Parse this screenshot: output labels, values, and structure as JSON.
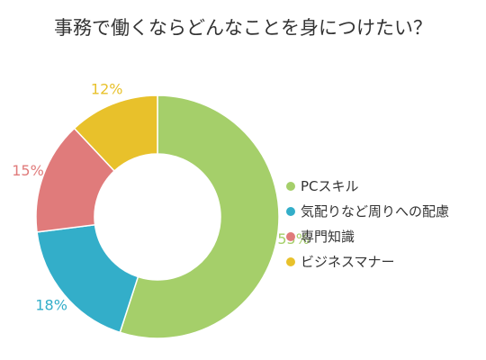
{
  "chart_data": {
    "type": "pie",
    "variant": "donut",
    "title": "事務で働くならどんなことを身につけたい？",
    "categories": [
      "PCスキル",
      "気配りなど周りへの配慮",
      "専門知識",
      "ビジネスマナー"
    ],
    "values": [
      55,
      18,
      15,
      12
    ],
    "value_labels": [
      "55%",
      "18%",
      "15%",
      "12%"
    ],
    "colors": [
      "#a5cf6a",
      "#33aec9",
      "#e07b7b",
      "#e8c12b"
    ],
    "legend_position": "right",
    "start_angle": "top",
    "direction": "clockwise"
  }
}
